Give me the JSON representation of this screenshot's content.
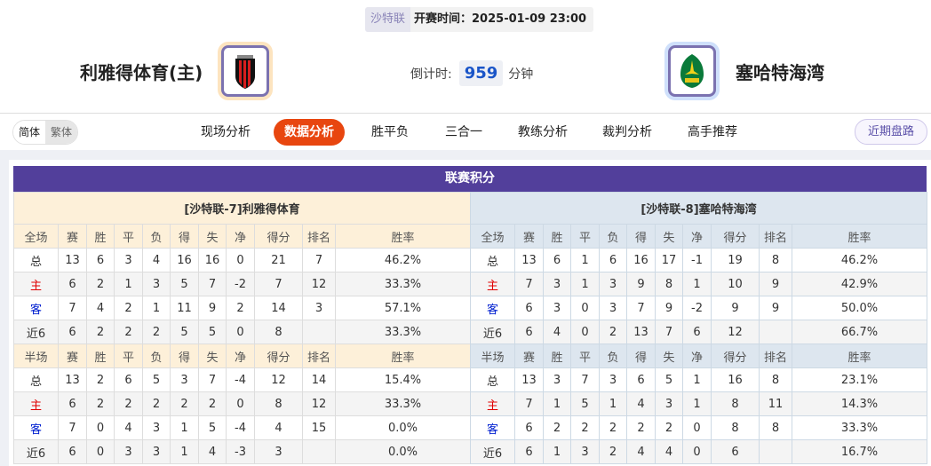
{
  "header": {
    "league": "沙特联",
    "kickoff_label": "开赛时间：2025-01-09 23:00",
    "home": {
      "name": "利雅得体育(主)",
      "logo": "al-riyadh-crest"
    },
    "away": {
      "name": "塞哈特海湾",
      "logo": "al-khaleej-crest"
    },
    "countdown_label": "倒计时:",
    "countdown_value": "959",
    "countdown_unit": "分钟"
  },
  "nav": {
    "lang": [
      "简体",
      "繁体"
    ],
    "tabs": [
      "现场分析",
      "数据分析",
      "胜平负",
      "三合一",
      "教练分析",
      "裁判分析",
      "高手推荐"
    ],
    "active_tab": "数据分析",
    "recent_button": "近期盘路"
  },
  "standings": {
    "title": "联赛积分",
    "columns_full": [
      "全场",
      "赛",
      "胜",
      "平",
      "负",
      "得",
      "失",
      "净",
      "得分",
      "排名",
      "胜率"
    ],
    "columns_half": [
      "半场",
      "赛",
      "胜",
      "平",
      "负",
      "得",
      "失",
      "净",
      "得分",
      "排名",
      "胜率"
    ],
    "home": {
      "title": "[沙特联-7]利雅得体育",
      "full": [
        [
          "总",
          "13",
          "6",
          "3",
          "4",
          "16",
          "16",
          "0",
          "21",
          "7",
          "46.2%"
        ],
        [
          "主",
          "6",
          "2",
          "1",
          "3",
          "5",
          "7",
          "-2",
          "7",
          "12",
          "33.3%"
        ],
        [
          "客",
          "7",
          "4",
          "2",
          "1",
          "11",
          "9",
          "2",
          "14",
          "3",
          "57.1%"
        ],
        [
          "近6",
          "6",
          "2",
          "2",
          "2",
          "5",
          "5",
          "0",
          "8",
          "",
          "33.3%"
        ]
      ],
      "half": [
        [
          "总",
          "13",
          "2",
          "6",
          "5",
          "3",
          "7",
          "-4",
          "12",
          "14",
          "15.4%"
        ],
        [
          "主",
          "6",
          "2",
          "2",
          "2",
          "2",
          "2",
          "0",
          "8",
          "12",
          "33.3%"
        ],
        [
          "客",
          "7",
          "0",
          "4",
          "3",
          "1",
          "5",
          "-4",
          "4",
          "15",
          "0.0%"
        ],
        [
          "近6",
          "6",
          "0",
          "3",
          "3",
          "1",
          "4",
          "-3",
          "3",
          "",
          "0.0%"
        ]
      ]
    },
    "away": {
      "title": "[沙特联-8]塞哈特海湾",
      "full": [
        [
          "总",
          "13",
          "6",
          "1",
          "6",
          "16",
          "17",
          "-1",
          "19",
          "8",
          "46.2%"
        ],
        [
          "主",
          "7",
          "3",
          "1",
          "3",
          "9",
          "8",
          "1",
          "10",
          "9",
          "42.9%"
        ],
        [
          "客",
          "6",
          "3",
          "0",
          "3",
          "7",
          "9",
          "-2",
          "9",
          "9",
          "50.0%"
        ],
        [
          "近6",
          "6",
          "4",
          "0",
          "2",
          "13",
          "7",
          "6",
          "12",
          "",
          "66.7%"
        ]
      ],
      "half": [
        [
          "总",
          "13",
          "3",
          "7",
          "3",
          "6",
          "5",
          "1",
          "16",
          "8",
          "23.1%"
        ],
        [
          "主",
          "7",
          "1",
          "5",
          "1",
          "4",
          "3",
          "1",
          "8",
          "11",
          "14.3%"
        ],
        [
          "客",
          "6",
          "2",
          "2",
          "2",
          "2",
          "2",
          "0",
          "8",
          "8",
          "33.3%"
        ],
        [
          "近6",
          "6",
          "1",
          "3",
          "2",
          "4",
          "4",
          "0",
          "6",
          "",
          "16.7%"
        ]
      ]
    }
  },
  "colors": {
    "accent": "#e8460f",
    "title_bar": "#523f9b",
    "home_red": "#e00000",
    "away_blue": "#0020d0"
  }
}
